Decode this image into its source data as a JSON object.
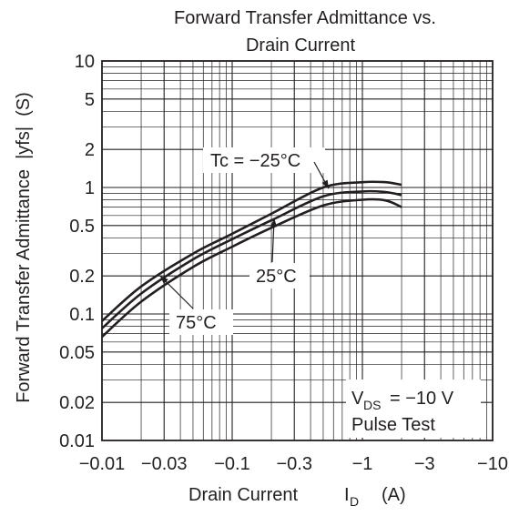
{
  "chart_data": {
    "type": "line",
    "title_line1": "Forward Transfer Admittance vs.",
    "title_line2": "Drain Current",
    "xlabel": "Drain Current",
    "xlabel_symbol": "I",
    "xlabel_subscript": "D",
    "xlabel_unit": "(A)",
    "ylabel": "Forward Transfer Admittance  |yfs|  (S)",
    "x_scale": "log",
    "y_scale": "log",
    "xlim": [
      -0.01,
      -10
    ],
    "ylim": [
      0.01,
      10
    ],
    "grid": true,
    "x_ticks": [
      {
        "value": 0.01,
        "label": "−0.01"
      },
      {
        "value": 0.03,
        "label": "−0.03"
      },
      {
        "value": 0.1,
        "label": "−0.1"
      },
      {
        "value": 0.3,
        "label": "−0.3"
      },
      {
        "value": 1,
        "label": "−1"
      },
      {
        "value": 3,
        "label": "−3"
      },
      {
        "value": 10,
        "label": "−10"
      }
    ],
    "y_ticks": [
      {
        "value": 0.01,
        "label": "0.01"
      },
      {
        "value": 0.02,
        "label": "0.02"
      },
      {
        "value": 0.05,
        "label": "0.05"
      },
      {
        "value": 0.1,
        "label": "0.1"
      },
      {
        "value": 0.2,
        "label": "0.2"
      },
      {
        "value": 0.5,
        "label": "0.5"
      },
      {
        "value": 1,
        "label": "1"
      },
      {
        "value": 2,
        "label": "2"
      },
      {
        "value": 5,
        "label": "5"
      },
      {
        "value": 10,
        "label": "10"
      }
    ],
    "series": [
      {
        "name": "Tc = −25°C",
        "x": [
          -0.01,
          -0.02,
          -0.05,
          -0.1,
          -0.2,
          -0.5,
          -1,
          -1.5,
          -2
        ],
        "y": [
          0.088,
          0.165,
          0.3,
          0.43,
          0.62,
          1.0,
          1.1,
          1.1,
          1.05
        ]
      },
      {
        "name": "25°C",
        "x": [
          -0.01,
          -0.02,
          -0.05,
          -0.1,
          -0.2,
          -0.5,
          -1,
          -1.5,
          -2
        ],
        "y": [
          0.077,
          0.145,
          0.27,
          0.39,
          0.55,
          0.85,
          0.93,
          0.92,
          0.87
        ]
      },
      {
        "name": "75°C",
        "x": [
          -0.01,
          -0.02,
          -0.05,
          -0.1,
          -0.2,
          -0.5,
          -1,
          -1.5,
          -2
        ],
        "y": [
          0.066,
          0.125,
          0.235,
          0.34,
          0.48,
          0.72,
          0.8,
          0.79,
          0.7
        ]
      }
    ],
    "annotations": {
      "condition_vds": "= −10 V",
      "condition_vds_symbol": "V",
      "condition_vds_subscript": "DS",
      "condition_pulse": "Pulse Test"
    },
    "line_color": "#231f20"
  }
}
